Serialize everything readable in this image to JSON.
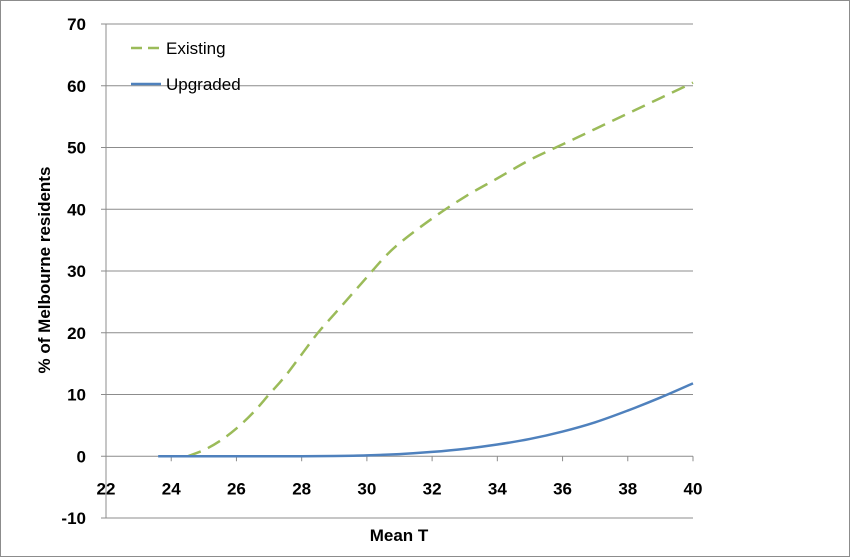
{
  "chart_data": {
    "type": "line",
    "xlabel": "Mean T",
    "ylabel": "% of Melbourne residents",
    "xlim": [
      22,
      40
    ],
    "ylim": [
      -10,
      70
    ],
    "xticks": [
      22,
      24,
      26,
      28,
      30,
      32,
      34,
      36,
      38,
      40
    ],
    "yticks": [
      -10,
      0,
      10,
      20,
      30,
      40,
      50,
      60,
      70
    ],
    "grid": "horizontal",
    "legend_position": "top-left",
    "series": [
      {
        "name": "Existing",
        "color": "#9bbb59",
        "style": "dashed",
        "x": [
          24.5,
          25,
          25.5,
          26,
          26.5,
          27,
          27.5,
          28,
          28.5,
          29,
          29.5,
          30,
          30.5,
          31,
          32,
          33,
          34,
          35,
          36,
          37,
          38,
          39,
          40
        ],
        "y": [
          0,
          1,
          2.5,
          4.5,
          7,
          10,
          13,
          16.5,
          20,
          23,
          26,
          29,
          32,
          34.5,
          38.5,
          42,
          45,
          48,
          50.5,
          53,
          55.5,
          58,
          60.5
        ]
      },
      {
        "name": "Upgraded",
        "color": "#4f81bd",
        "style": "solid",
        "x": [
          23.6,
          24,
          25,
          26,
          27,
          28,
          29,
          30,
          31,
          32,
          33,
          34,
          35,
          36,
          37,
          38,
          39,
          40
        ],
        "y": [
          0,
          0,
          0,
          0,
          0,
          0,
          0.05,
          0.15,
          0.35,
          0.7,
          1.2,
          1.9,
          2.8,
          4,
          5.5,
          7.4,
          9.5,
          11.8
        ]
      }
    ]
  }
}
